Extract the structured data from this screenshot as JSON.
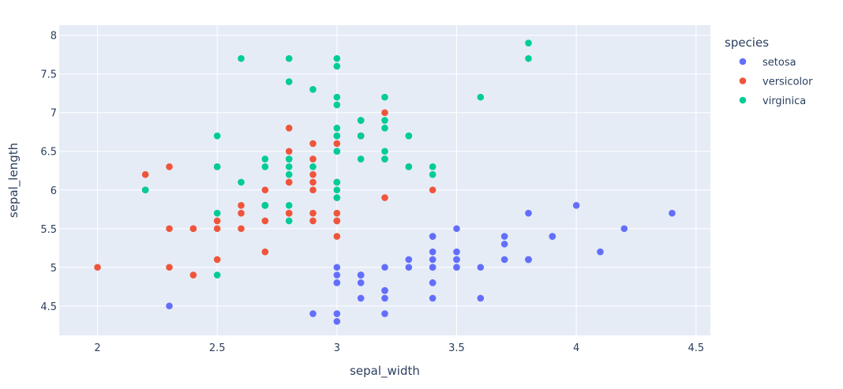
{
  "chart_data": {
    "type": "scatter",
    "xlabel": "sepal_width",
    "ylabel": "sepal_length",
    "xlim": [
      1.84,
      4.56
    ],
    "ylim": [
      4.12,
      8.13
    ],
    "xticks": [
      2,
      2.5,
      3,
      3.5,
      4,
      4.5
    ],
    "xtick_labels": [
      "2",
      "2.5",
      "3",
      "3.5",
      "4",
      "4.5"
    ],
    "yticks": [
      4.5,
      5,
      5.5,
      6,
      6.5,
      7,
      7.5,
      8
    ],
    "ytick_labels": [
      "4.5",
      "5",
      "5.5",
      "6",
      "6.5",
      "7",
      "7.5",
      "8"
    ],
    "grid": true,
    "legend_title": "species",
    "legend_position": "right",
    "colors": {
      "background": "#e5ecf6",
      "grid": "#ffffff"
    },
    "series": [
      {
        "name": "setosa",
        "color": "#636efa",
        "x": [
          3.5,
          3.0,
          3.2,
          3.1,
          3.6,
          3.9,
          3.4,
          3.4,
          2.9,
          3.1,
          3.7,
          3.4,
          3.0,
          3.0,
          4.0,
          4.4,
          3.9,
          3.5,
          3.8,
          3.8,
          3.4,
          3.7,
          3.6,
          3.3,
          3.4,
          3.0,
          3.4,
          3.5,
          3.4,
          3.2,
          3.1,
          3.4,
          4.1,
          4.2,
          3.1,
          3.2,
          3.5,
          3.1,
          3.0,
          3.4,
          3.5,
          2.3,
          3.2,
          3.5,
          3.8,
          3.0,
          3.8,
          3.2,
          3.7,
          3.3
        ],
        "y": [
          5.1,
          4.9,
          4.7,
          4.6,
          5.0,
          5.4,
          4.6,
          5.0,
          4.4,
          4.9,
          5.4,
          4.8,
          4.8,
          4.3,
          5.8,
          5.7,
          5.4,
          5.1,
          5.7,
          5.1,
          5.4,
          5.1,
          4.6,
          5.1,
          4.8,
          5.0,
          5.0,
          5.2,
          5.2,
          4.7,
          4.8,
          5.4,
          5.2,
          5.5,
          4.9,
          5.0,
          5.5,
          4.9,
          4.4,
          5.1,
          5.0,
          4.5,
          4.4,
          5.0,
          5.1,
          4.8,
          5.1,
          4.6,
          5.3,
          5.0
        ]
      },
      {
        "name": "versicolor",
        "color": "#ef553b",
        "x": [
          3.2,
          3.2,
          3.1,
          2.3,
          2.8,
          2.8,
          3.3,
          2.4,
          2.9,
          2.7,
          2.0,
          3.0,
          2.2,
          2.9,
          2.9,
          3.1,
          3.0,
          2.7,
          2.2,
          2.5,
          3.2,
          2.8,
          2.5,
          2.8,
          2.9,
          3.0,
          2.8,
          3.0,
          2.9,
          2.6,
          2.4,
          2.4,
          2.7,
          2.7,
          3.0,
          3.4,
          3.1,
          2.3,
          3.0,
          2.5,
          2.6,
          3.0,
          2.6,
          2.3,
          2.7,
          3.0,
          2.9,
          2.9,
          2.5,
          2.8
        ],
        "y": [
          7.0,
          6.4,
          6.9,
          5.5,
          6.5,
          5.7,
          6.3,
          4.9,
          6.6,
          5.2,
          5.0,
          5.9,
          6.0,
          6.1,
          5.6,
          6.7,
          5.6,
          5.8,
          6.2,
          5.6,
          5.9,
          6.1,
          6.3,
          6.1,
          6.4,
          6.6,
          6.8,
          6.7,
          6.0,
          5.7,
          5.5,
          5.5,
          5.8,
          6.0,
          5.4,
          6.0,
          6.7,
          6.3,
          5.6,
          5.5,
          5.5,
          6.1,
          5.8,
          5.0,
          5.6,
          5.7,
          5.7,
          6.2,
          5.1,
          5.7
        ]
      },
      {
        "name": "virginica",
        "color": "#00cc96",
        "x": [
          3.3,
          2.7,
          3.0,
          2.9,
          3.0,
          3.0,
          2.5,
          2.9,
          2.5,
          3.6,
          3.2,
          2.7,
          3.0,
          2.5,
          2.8,
          3.2,
          3.0,
          3.8,
          2.6,
          2.2,
          3.2,
          2.8,
          2.8,
          2.7,
          3.3,
          3.2,
          2.8,
          3.0,
          2.8,
          3.0,
          2.8,
          3.8,
          2.8,
          2.8,
          2.6,
          3.0,
          3.4,
          3.1,
          3.0,
          3.1,
          3.1,
          3.1,
          2.7,
          3.2,
          3.3,
          3.0,
          2.5,
          3.0,
          3.4,
          3.0
        ],
        "y": [
          6.3,
          5.8,
          7.1,
          6.3,
          6.5,
          7.6,
          4.9,
          7.3,
          6.7,
          7.2,
          6.5,
          6.4,
          6.8,
          5.7,
          5.8,
          6.4,
          6.5,
          7.7,
          7.7,
          6.0,
          6.9,
          5.6,
          7.7,
          6.3,
          6.7,
          7.2,
          6.2,
          6.1,
          6.4,
          7.2,
          7.4,
          7.9,
          6.4,
          6.3,
          6.1,
          7.7,
          6.3,
          6.4,
          6.0,
          6.9,
          6.7,
          6.9,
          5.8,
          6.8,
          6.7,
          6.7,
          6.3,
          6.5,
          6.2,
          5.9
        ]
      }
    ]
  }
}
